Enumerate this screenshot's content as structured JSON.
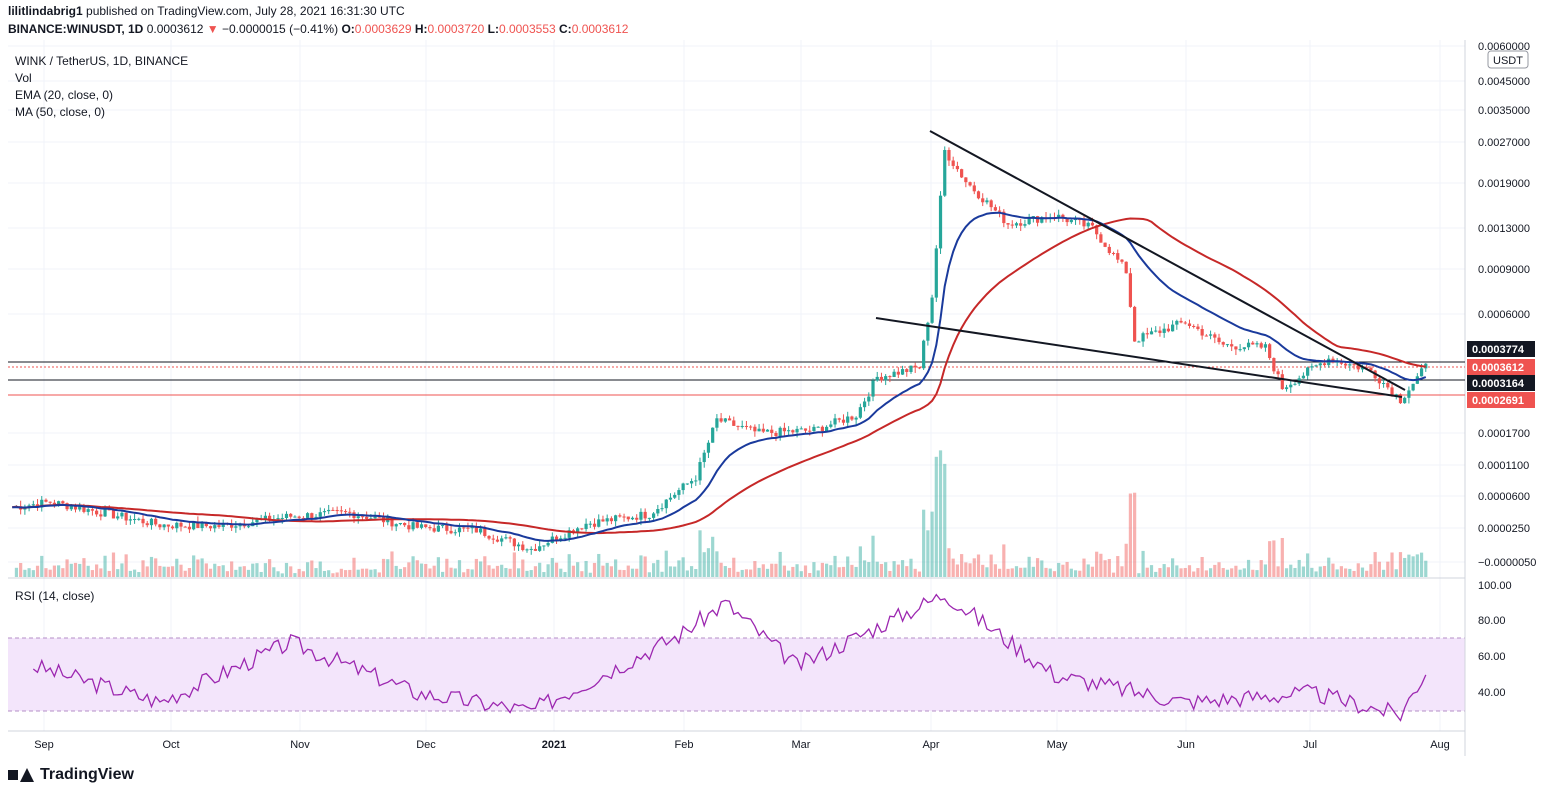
{
  "header": {
    "publisher": "lilitlindabrig1",
    "published_text": "published on TradingView.com, July 28, 2021 16:31:30 UTC",
    "symbol": "BINANCE:WINUSDT, 1D",
    "price": "0.0003612",
    "change_arrow": "▼",
    "change": "−0.0000015 (−0.41%)",
    "o_label": "O:",
    "o_value": "0.0003629",
    "h_label": "H:",
    "h_value": "0.0003720",
    "l_label": "L:",
    "l_value": "0.0003553",
    "c_label": "C:",
    "c_value": "0.0003612"
  },
  "legend": {
    "title": "WINK / TetherUS, 1D, BINANCE",
    "vol": "Vol",
    "ema": "EMA (20, close, 0)",
    "ma": "MA (50, close, 0)",
    "rsi": "RSI (14, close)"
  },
  "brand": "TradingView",
  "colors": {
    "up": "#26a69a",
    "down": "#ef5350",
    "ema": "#1a3a9c",
    "ma": "#c62828",
    "rsi": "#9c27b0",
    "rsi_band": "#f3e5fb"
  },
  "chart_data": {
    "type": "candlestick",
    "y_scale": "log",
    "price_axis_unit": "USDT",
    "price_ticks": [
      "0.0060000",
      "0.0045000",
      "0.0035000",
      "0.0027000",
      "0.0019000",
      "0.0013000",
      "0.0009000",
      "0.0006000",
      "0.0001700",
      "0.0001100",
      "0.0000600",
      "0.0000250",
      "−0.0000050"
    ],
    "price_labels": [
      {
        "value": "0.0003774",
        "style": "black"
      },
      {
        "value": "0.0003612",
        "style": "red"
      },
      {
        "value": "0.0003164",
        "style": "black"
      },
      {
        "value": "0.0002691",
        "style": "red"
      }
    ],
    "x_ticks": [
      "Sep",
      "Oct",
      "Nov",
      "Dec",
      "2021",
      "Feb",
      "Mar",
      "Apr",
      "May",
      "Jun",
      "Jul",
      "Aug"
    ],
    "rsi_ticks": [
      "100.00",
      "80.00",
      "60.00",
      "40.00"
    ],
    "rsi_band": [
      30,
      70
    ],
    "price_path_approx": [
      [
        "2020-08-27",
        0.000103
      ],
      [
        "2020-09-05",
        0.000108
      ],
      [
        "2020-09-15",
        0.0001
      ],
      [
        "2020-10-01",
        8.8e-05
      ],
      [
        "2020-10-15",
        8.7e-05
      ],
      [
        "2020-11-01",
        9.5e-05
      ],
      [
        "2020-11-15",
        9.8e-05
      ],
      [
        "2020-12-01",
        8.6e-05
      ],
      [
        "2020-12-15",
        8.4e-05
      ],
      [
        "2020-12-28",
        7.1e-05
      ],
      [
        "2021-01-10",
        8.9e-05
      ],
      [
        "2021-01-25",
        9.7e-05
      ],
      [
        "2021-02-05",
        0.000135
      ],
      [
        "2021-02-10",
        0.000225
      ],
      [
        "2021-02-20",
        0.0002
      ],
      [
        "2021-03-05",
        0.000205
      ],
      [
        "2021-03-15",
        0.000235
      ],
      [
        "2021-03-20",
        0.00033
      ],
      [
        "2021-03-30",
        0.00036
      ],
      [
        "2021-04-02",
        0.00068
      ],
      [
        "2021-04-05",
        0.0025
      ],
      [
        "2021-04-10",
        0.0019
      ],
      [
        "2021-04-20",
        0.0013
      ],
      [
        "2021-05-01",
        0.0014
      ],
      [
        "2021-05-10",
        0.00125
      ],
      [
        "2021-05-18",
        0.00085
      ],
      [
        "2021-05-20",
        0.00046
      ],
      [
        "2021-06-01",
        0.00054
      ],
      [
        "2021-06-10",
        0.00044
      ],
      [
        "2021-06-20",
        0.00043
      ],
      [
        "2021-06-24",
        0.0003
      ],
      [
        "2021-07-05",
        0.00039
      ],
      [
        "2021-07-15",
        0.00035
      ],
      [
        "2021-07-22",
        0.00027
      ],
      [
        "2021-07-28",
        0.000361
      ]
    ],
    "trendlines": [
      {
        "from": [
          "2021-03-31",
          0.0029
        ],
        "to": [
          "2021-07-24",
          0.000285
        ]
      },
      {
        "from": [
          "2021-03-18",
          0.00057
        ],
        "to": [
          "2021-07-24",
          0.000262
        ]
      }
    ],
    "rsi_path_approx": [
      [
        "2020-09-01",
        55
      ],
      [
        "2020-10-01",
        35
      ],
      [
        "2020-11-01",
        68
      ],
      [
        "2020-12-01",
        40
      ],
      [
        "2020-12-28",
        30
      ],
      [
        "2021-02-01",
        72
      ],
      [
        "2021-02-12",
        90
      ],
      [
        "2021-03-01",
        55
      ],
      [
        "2021-04-05",
        95
      ],
      [
        "2021-05-01",
        50
      ],
      [
        "2021-06-01",
        35
      ],
      [
        "2021-07-01",
        40
      ],
      [
        "2021-07-22",
        28
      ],
      [
        "2021-07-28",
        52
      ]
    ]
  }
}
